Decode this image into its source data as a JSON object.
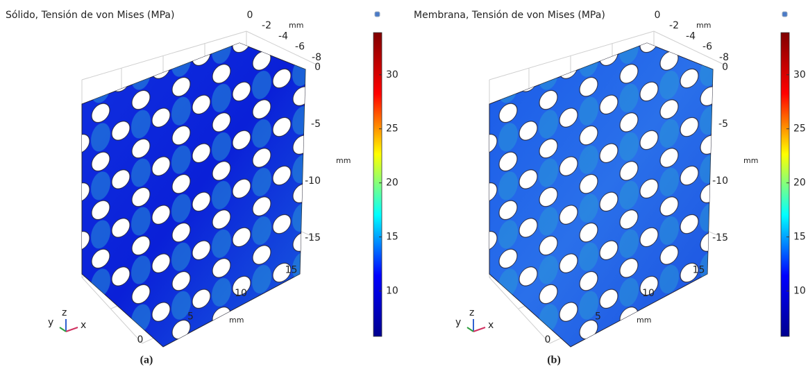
{
  "chart_data": [
    {
      "type": "colormap3d",
      "title": "Sólido, Tensión de von Mises (MPa)",
      "colormap": "jet",
      "colorbar": {
        "clim": [
          5.8,
          33.9
        ],
        "ticks": [
          10,
          15,
          20,
          25,
          30
        ]
      },
      "xaxis": {
        "label": "mm",
        "ticks": [
          0,
          5,
          10,
          15
        ]
      },
      "yaxis": {
        "label": "mm",
        "ticks": [
          0,
          -2,
          -4,
          -6,
          -8
        ]
      },
      "zaxis": {
        "label": "mm",
        "ticks": [
          0,
          -5,
          -10,
          -15
        ]
      },
      "triad": [
        "x",
        "y",
        "z"
      ],
      "caption": "(a)"
    },
    {
      "type": "colormap3d",
      "title": "Membrana, Tensión de von Mises (MPa)",
      "colormap": "jet",
      "colorbar": {
        "clim": [
          5.8,
          33.9
        ],
        "ticks": [
          10,
          15,
          20,
          25,
          30
        ]
      },
      "xaxis": {
        "label": "mm",
        "ticks": [
          0,
          5,
          10,
          15
        ]
      },
      "yaxis": {
        "label": "mm",
        "ticks": [
          0,
          -2,
          -4,
          -6,
          -8
        ]
      },
      "zaxis": {
        "label": "mm",
        "ticks": [
          0,
          -5,
          -10,
          -15
        ]
      },
      "triad": [
        "x",
        "y",
        "z"
      ],
      "caption": "(b)"
    }
  ]
}
